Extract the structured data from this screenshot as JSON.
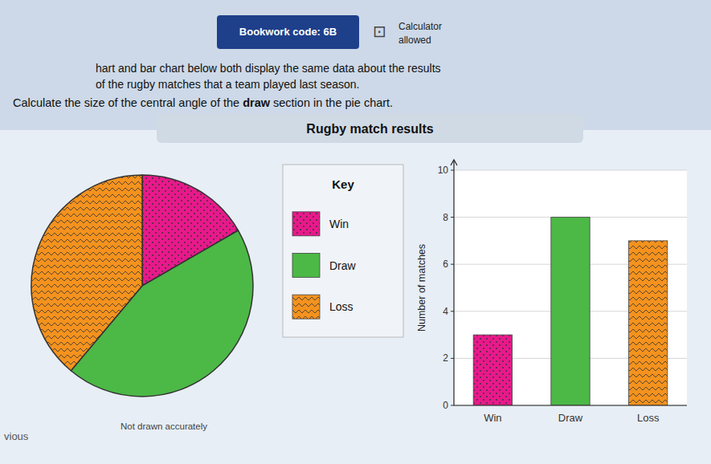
{
  "chart_data": [
    {
      "type": "pie",
      "title": "Rugby match results",
      "categories": [
        "Win",
        "Draw",
        "Loss"
      ],
      "values": [
        3,
        8,
        7
      ],
      "colors": [
        "#e8198b",
        "#4cb846",
        "#f5921e"
      ],
      "legend": "right",
      "annotations": [
        "Bookwork code: 6B",
        "⊡",
        "Calculator",
        "allowed",
        "hart and bar chart below both display the same data about the results",
        "of the rugby matches that a team played last season.",
        "Calculate the size of the central angle of the ",
        "draw",
        " section in the pie chart.",
        "Not drawn accurately",
        "Key",
        "vious"
      ]
    },
    {
      "type": "bar",
      "categories": [
        "Win",
        "Draw",
        "Loss"
      ],
      "values": [
        3,
        8,
        7
      ],
      "colors": [
        "#e8198b",
        "#4cb846",
        "#f5921e"
      ],
      "ylabel": "Number of matches",
      "ylim": [
        0,
        10
      ],
      "yticks": [
        0,
        2,
        4,
        6,
        8,
        10
      ],
      "grid": true
    }
  ]
}
